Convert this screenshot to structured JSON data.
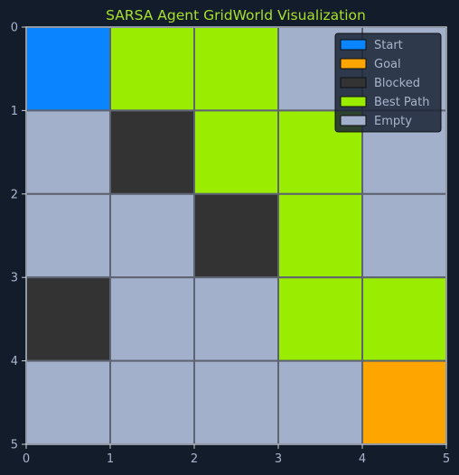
{
  "chart_data": {
    "type": "heatmap",
    "title": "SARSA Agent GridWorld Visualization",
    "xlabel": "",
    "ylabel": "",
    "xlim": [
      0,
      5
    ],
    "ylim": [
      5,
      0
    ],
    "x_ticks": [
      "0",
      "1",
      "2",
      "3",
      "4",
      "5"
    ],
    "y_ticks": [
      "0",
      "1",
      "2",
      "3",
      "4",
      "5"
    ],
    "rows": 5,
    "cols": 5,
    "grid": [
      [
        "Start",
        "Best Path",
        "Best Path",
        "Empty",
        "Empty"
      ],
      [
        "Empty",
        "Blocked",
        "Best Path",
        "Best Path",
        "Empty"
      ],
      [
        "Empty",
        "Empty",
        "Blocked",
        "Best Path",
        "Empty"
      ],
      [
        "Blocked",
        "Empty",
        "Empty",
        "Best Path",
        "Best Path"
      ],
      [
        "Empty",
        "Empty",
        "Empty",
        "Empty",
        "Goal"
      ]
    ],
    "legend": {
      "placement": "top-right",
      "entries": [
        {
          "label": "Start",
          "color": "#0a84ff"
        },
        {
          "label": "Goal",
          "color": "#ffa500"
        },
        {
          "label": "Blocked",
          "color": "#333333"
        },
        {
          "label": "Best Path",
          "color": "#9aec00"
        },
        {
          "label": "Empty",
          "color": "#a3b0cc"
        }
      ]
    }
  }
}
